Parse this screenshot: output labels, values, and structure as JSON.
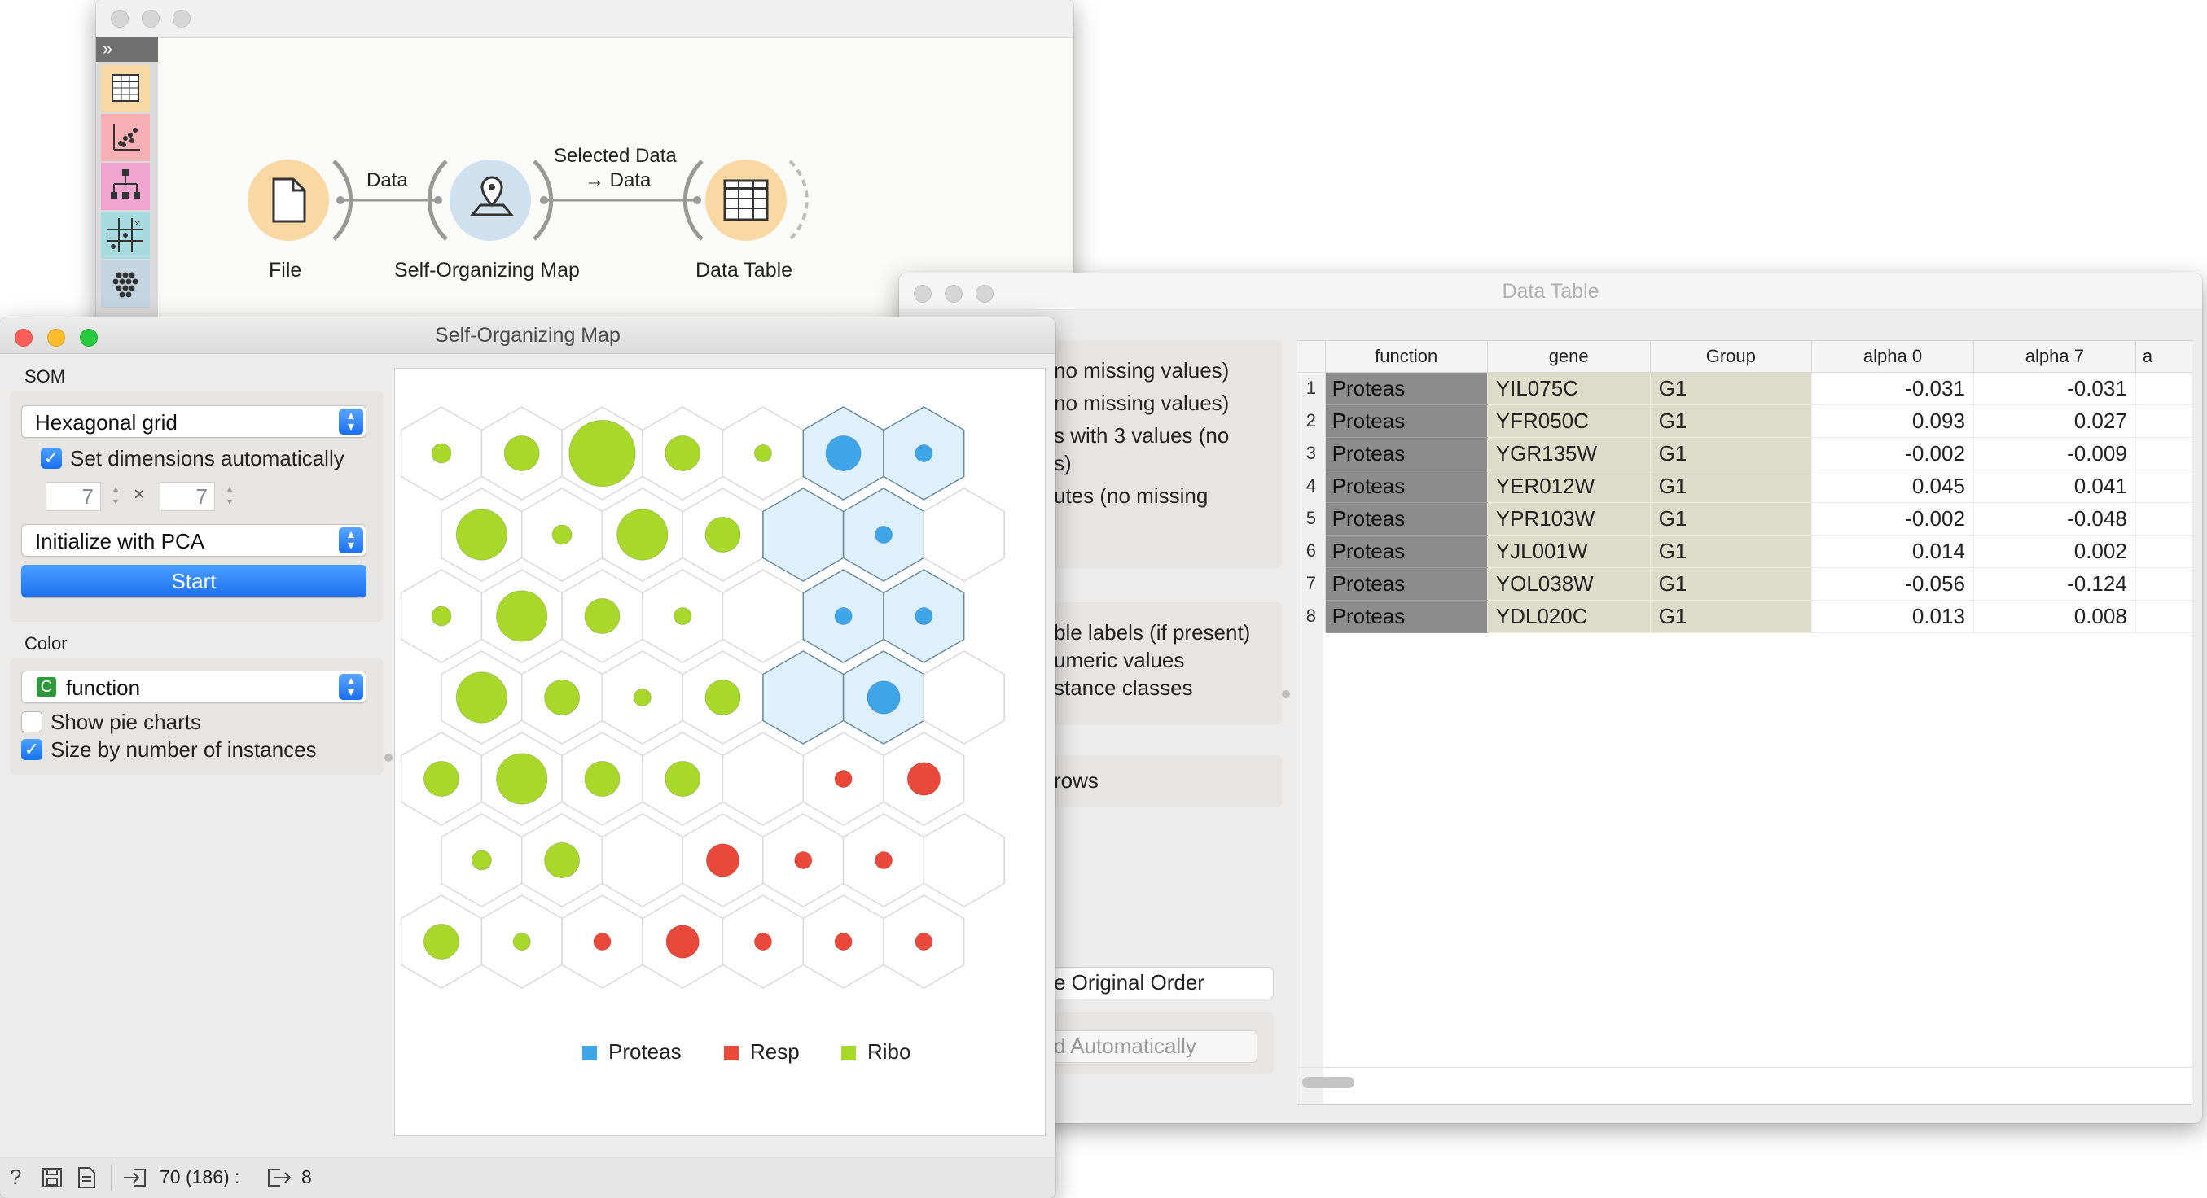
{
  "canvas_window": {
    "nodes": [
      {
        "id": "file",
        "label": "File"
      },
      {
        "id": "som",
        "label": "Self-Organizing Map"
      },
      {
        "id": "table",
        "label": "Data Table"
      }
    ],
    "links": [
      {
        "label": "Data"
      },
      {
        "label_line1": "Selected Data",
        "label_line2": "→ Data"
      }
    ],
    "toolbox_icons": [
      "table-icon",
      "scatter-icon",
      "tree-icon",
      "grid-icon",
      "dots-icon"
    ]
  },
  "som_window": {
    "title": "Self-Organizing Map",
    "som_section": "SOM",
    "grid_type": "Hexagonal grid",
    "set_dims_label": "Set dimensions automatically",
    "set_dims_checked": true,
    "width_value": "7",
    "height_value": "7",
    "times_sign": "×",
    "init_method": "Initialize with PCA",
    "start_label": "Start",
    "color_section": "Color",
    "color_badge": "C",
    "color_variable": "function",
    "pie_charts_label": "Show pie charts",
    "pie_charts_checked": false,
    "size_by_label": "Size by number of instances",
    "size_by_checked": true,
    "legend": [
      {
        "label": "Proteas",
        "color": "#3ea6e8"
      },
      {
        "label": "Resp",
        "color": "#e8493a"
      },
      {
        "label": "Ribo",
        "color": "#a8d82a"
      }
    ],
    "status_input": "70 (186) :",
    "status_output": "8",
    "map_cells": [
      [
        {
          "c": "ribo",
          "s": 0.25
        },
        {
          "c": "ribo",
          "s": 0.45
        },
        {
          "c": "ribo",
          "s": 0.85
        },
        {
          "c": "ribo",
          "s": 0.45
        },
        {
          "c": "ribo",
          "s": 0.22
        },
        {
          "c": "proteas",
          "s": 0.45,
          "sel": true
        },
        {
          "c": "proteas",
          "s": 0.22,
          "sel": true
        }
      ],
      [
        {
          "c": "ribo",
          "s": 0.65
        },
        {
          "c": "ribo",
          "s": 0.25
        },
        {
          "c": "ribo",
          "s": 0.65
        },
        {
          "c": "ribo",
          "s": 0.45
        },
        {
          "c": null,
          "s": 0,
          "sel": true
        },
        {
          "c": "proteas",
          "s": 0.22,
          "sel": true
        },
        {
          "c": null,
          "s": 0
        }
      ],
      [
        {
          "c": "ribo",
          "s": 0.25
        },
        {
          "c": "ribo",
          "s": 0.65
        },
        {
          "c": "ribo",
          "s": 0.45
        },
        {
          "c": "ribo",
          "s": 0.22
        },
        {
          "c": null,
          "s": 0
        },
        {
          "c": "proteas",
          "s": 0.22,
          "sel": true
        },
        {
          "c": "proteas",
          "s": 0.22,
          "sel": true
        }
      ],
      [
        {
          "c": "ribo",
          "s": 0.65
        },
        {
          "c": "ribo",
          "s": 0.45
        },
        {
          "c": "ribo",
          "s": 0.22
        },
        {
          "c": "ribo",
          "s": 0.45
        },
        {
          "c": null,
          "s": 0,
          "sel": true
        },
        {
          "c": "proteas",
          "s": 0.42,
          "sel": true
        },
        {
          "c": null,
          "s": 0
        }
      ],
      [
        {
          "c": "ribo",
          "s": 0.45
        },
        {
          "c": "ribo",
          "s": 0.65
        },
        {
          "c": "ribo",
          "s": 0.45
        },
        {
          "c": "ribo",
          "s": 0.45
        },
        {
          "c": null,
          "s": 0
        },
        {
          "c": "resp",
          "s": 0.22
        },
        {
          "c": "resp",
          "s": 0.42
        }
      ],
      [
        {
          "c": "ribo",
          "s": 0.25
        },
        {
          "c": "ribo",
          "s": 0.45
        },
        {
          "c": null,
          "s": 0
        },
        {
          "c": "resp",
          "s": 0.42
        },
        {
          "c": "resp",
          "s": 0.22
        },
        {
          "c": "resp",
          "s": 0.22
        },
        {
          "c": null,
          "s": 0
        }
      ],
      [
        {
          "c": "ribo",
          "s": 0.45
        },
        {
          "c": "ribo",
          "s": 0.22
        },
        {
          "c": "resp",
          "s": 0.22
        },
        {
          "c": "resp",
          "s": 0.42
        },
        {
          "c": "resp",
          "s": 0.22
        },
        {
          "c": "resp",
          "s": 0.22
        },
        {
          "c": "resp",
          "s": 0.22
        }
      ]
    ]
  },
  "table_window": {
    "title": "Data Table",
    "left_panel_fragments": [
      "no missing values)",
      "no missing values)",
      "s with 3 values (no",
      "s)",
      "utes (no missing",
      "ble labels (if present)",
      "umeric values",
      "stance classes",
      "rows",
      "e Original Order",
      "d Automatically"
    ],
    "columns": [
      "function",
      "gene",
      "Group",
      "alpha 0",
      "alpha 7",
      "a"
    ],
    "rows": [
      {
        "n": "1",
        "function": "Proteas",
        "gene": "YIL075C",
        "group": "G1",
        "a0": "-0.031",
        "a7": "-0.031"
      },
      {
        "n": "2",
        "function": "Proteas",
        "gene": "YFR050C",
        "group": "G1",
        "a0": "0.093",
        "a7": "0.027"
      },
      {
        "n": "3",
        "function": "Proteas",
        "gene": "YGR135W",
        "group": "G1",
        "a0": "-0.002",
        "a7": "-0.009"
      },
      {
        "n": "4",
        "function": "Proteas",
        "gene": "YER012W",
        "group": "G1",
        "a0": "0.045",
        "a7": "0.041"
      },
      {
        "n": "5",
        "function": "Proteas",
        "gene": "YPR103W",
        "group": "G1",
        "a0": "-0.002",
        "a7": "-0.048"
      },
      {
        "n": "6",
        "function": "Proteas",
        "gene": "YJL001W",
        "group": "G1",
        "a0": "0.014",
        "a7": "0.002"
      },
      {
        "n": "7",
        "function": "Proteas",
        "gene": "YOL038W",
        "group": "G1",
        "a0": "-0.056",
        "a7": "-0.124"
      },
      {
        "n": "8",
        "function": "Proteas",
        "gene": "YDL020C",
        "group": "G1",
        "a0": "0.013",
        "a7": "0.008"
      }
    ]
  }
}
